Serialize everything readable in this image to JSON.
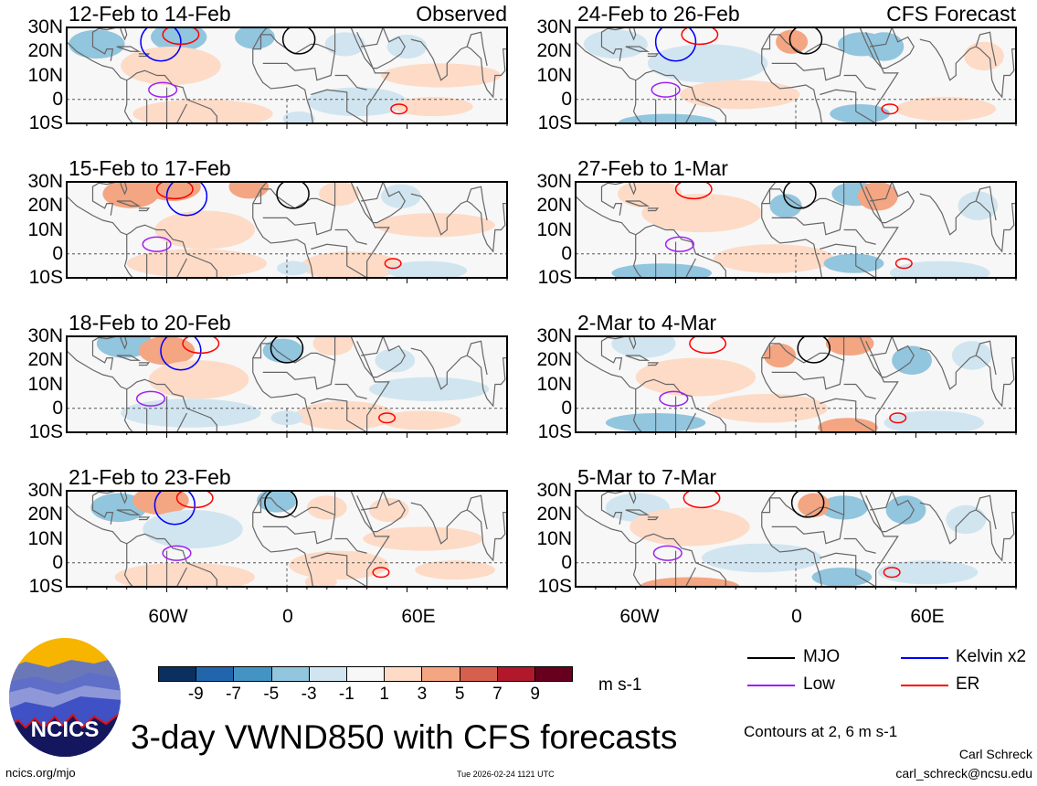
{
  "figure_title": "3-day VWND850 with CFS forecasts",
  "columns": [
    {
      "label": "Observed",
      "panels": [
        {
          "title": "12-Feb to 14-Feb"
        },
        {
          "title": "15-Feb to 17-Feb"
        },
        {
          "title": "18-Feb to 20-Feb"
        },
        {
          "title": "21-Feb to 23-Feb"
        }
      ]
    },
    {
      "label": "CFS Forecast",
      "panels": [
        {
          "title": "24-Feb to 26-Feb"
        },
        {
          "title": "27-Feb to 1-Mar"
        },
        {
          "title": "2-Mar to 4-Mar"
        },
        {
          "title": "5-Mar to 7-Mar"
        }
      ]
    }
  ],
  "lat_labels": [
    "30N",
    "20N",
    "10N",
    "0",
    "10S"
  ],
  "lon_labels": [
    "60W",
    "0",
    "60E"
  ],
  "colorbar": {
    "labels": [
      "-9",
      "-7",
      "-5",
      "-3",
      "-1",
      "1",
      "3",
      "5",
      "7",
      "9"
    ],
    "colors": [
      "#0b2f5e",
      "#2166ac",
      "#4393c3",
      "#92c5de",
      "#d1e5f0",
      "#f7f7f7",
      "#fddbc7",
      "#f4a582",
      "#d6604d",
      "#b2182b",
      "#67001f"
    ],
    "unit": "m s-1"
  },
  "legend": [
    {
      "label": "MJO",
      "color": "#000000"
    },
    {
      "label": "Kelvin x2",
      "color": "#0000ff"
    },
    {
      "label": "Low",
      "color": "#a020f0"
    },
    {
      "label": "ER",
      "color": "#ff0000"
    }
  ],
  "contour_note": "Contours at 2, 6 m s-1",
  "logo": {
    "text": "NCICS"
  },
  "footer": {
    "url": "ncics.org/mjo",
    "timestamp": "Tue 2026-02-24 1121 UTC",
    "author": "Carl Schreck",
    "email": "carl_schreck@ncsu.edu"
  }
}
